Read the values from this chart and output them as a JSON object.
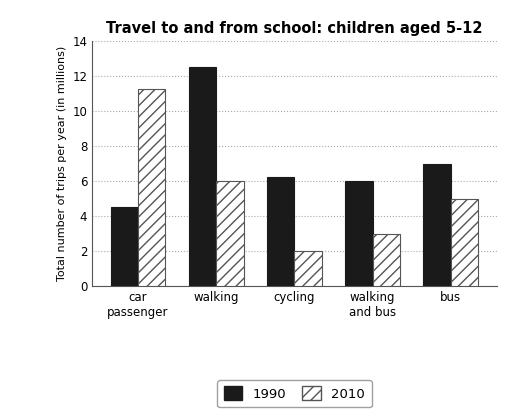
{
  "title": "Travel to and from school: children aged 5-12",
  "categories": [
    "car\npassenger",
    "walking",
    "cycling",
    "walking\nand bus",
    "bus"
  ],
  "values_1990": [
    4.5,
    12.5,
    6.25,
    6.0,
    7.0
  ],
  "values_2010": [
    11.25,
    6.0,
    2.0,
    3.0,
    5.0
  ],
  "ylabel": "Total number of trips per year (in millions)",
  "ylim": [
    0,
    14
  ],
  "yticks": [
    0,
    2,
    4,
    6,
    8,
    10,
    12,
    14
  ],
  "legend_labels": [
    "1990",
    "2010"
  ],
  "color_1990": "#1a1a1a",
  "color_2010_edge": "#555555",
  "bar_width": 0.35,
  "background_color": "#ffffff",
  "grid_color": "#aaaaaa"
}
